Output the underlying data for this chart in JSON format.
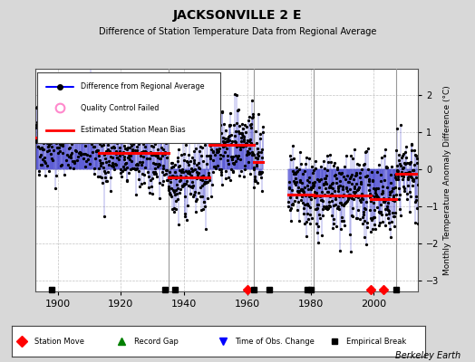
{
  "title": "JACKSONVILLE 2 E",
  "subtitle": "Difference of Station Temperature Data from Regional Average",
  "ylabel": "Monthly Temperature Anomaly Difference (°C)",
  "xlabel_years": [
    1900,
    1920,
    1940,
    1960,
    1980,
    2000
  ],
  "xlim": [
    1893,
    2014
  ],
  "ylim": [
    -3.3,
    2.7
  ],
  "yticks": [
    -3,
    -2,
    -1,
    0,
    1,
    2
  ],
  "background_color": "#d8d8d8",
  "plot_bg_color": "#ffffff",
  "grid_color": "#bbbbbb",
  "data_line_color": "#3333cc",
  "data_dot_color": "#000000",
  "bias_line_color": "#ff0000",
  "segment_biases": [
    {
      "x_start": 1893,
      "x_end": 1913,
      "bias": 0.85
    },
    {
      "x_start": 1913,
      "x_end": 1935,
      "bias": 0.42
    },
    {
      "x_start": 1935,
      "x_end": 1948,
      "bias": -0.22
    },
    {
      "x_start": 1948,
      "x_end": 1962,
      "bias": 0.65
    },
    {
      "x_start": 1962,
      "x_end": 1965,
      "bias": 0.2
    },
    {
      "x_start": 1973,
      "x_end": 1981,
      "bias": -0.68
    },
    {
      "x_start": 1981,
      "x_end": 1999,
      "bias": -0.72
    },
    {
      "x_start": 1999,
      "x_end": 2007,
      "bias": -0.8
    },
    {
      "x_start": 2007,
      "x_end": 2014,
      "bias": -0.12
    }
  ],
  "station_moves": [
    1960,
    1999,
    2003
  ],
  "empirical_breaks": [
    1898,
    1934,
    1937,
    1962,
    1967,
    1979,
    1980,
    2007
  ],
  "vertical_lines": [
    1935,
    1962,
    1981,
    2007
  ],
  "seed": 42,
  "gap_start": 1965.0,
  "gap_end": 1973.0,
  "berkeley_earth_text": "Berkeley Earth"
}
